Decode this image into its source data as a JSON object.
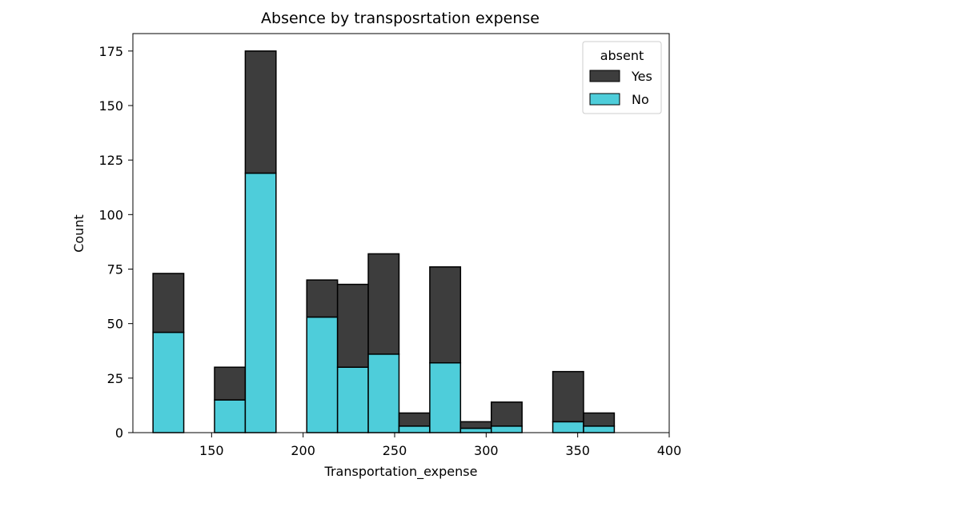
{
  "chart_data": {
    "type": "bar",
    "stacked": true,
    "title": "Absence by transposrtation expense",
    "xlabel": "Transportation_expense",
    "ylabel": "Count",
    "xlim": [
      107,
      400
    ],
    "ylim": [
      0,
      183
    ],
    "xticks": [
      150,
      200,
      250,
      300,
      350,
      400
    ],
    "yticks": [
      0,
      25,
      50,
      75,
      100,
      125,
      150,
      175
    ],
    "bin_width": 16.8,
    "bin_starts": [
      118,
      134.8,
      151.6,
      168.4,
      185.2,
      202,
      218.8,
      235.6,
      252.4,
      269.2,
      286,
      302.8,
      319.6,
      336.4,
      353.2,
      370
    ],
    "series": [
      {
        "name": "No",
        "color": "#4ecdda",
        "values": [
          46,
          0,
          15,
          119,
          0,
          53,
          30,
          36,
          3,
          32,
          2,
          3,
          0,
          5,
          3,
          0
        ]
      },
      {
        "name": "Yes",
        "color": "#3d3d3d",
        "values": [
          27,
          0,
          15,
          56,
          0,
          17,
          38,
          46,
          6,
          44,
          3,
          11,
          0,
          23,
          6,
          0
        ]
      }
    ],
    "legend": {
      "title": "absent",
      "position": "top-right",
      "entries": [
        "Yes",
        "No"
      ]
    },
    "grid": false
  }
}
